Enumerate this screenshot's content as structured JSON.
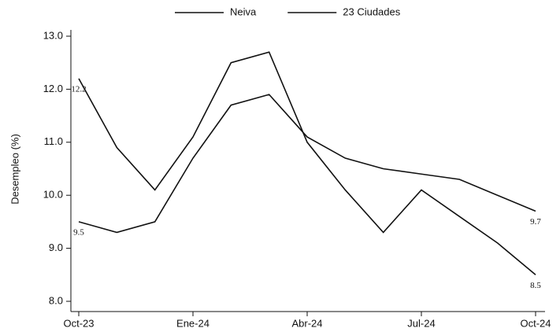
{
  "chart_data": {
    "type": "line",
    "y_label": "Desempleo (%)",
    "categories": [
      "Oct-23",
      null,
      null,
      "Ene-24",
      null,
      null,
      "Abr-24",
      null,
      null,
      "Jul-24",
      null,
      null,
      "Oct-24"
    ],
    "series": [
      {
        "name": "Neiva",
        "color": "#111111",
        "values": [
          12.2,
          10.9,
          10.1,
          11.1,
          12.5,
          12.7,
          11.0,
          10.1,
          9.3,
          10.1,
          9.6,
          9.1,
          8.5
        ]
      },
      {
        "name": "23 Ciudades",
        "color": "#111111",
        "values": [
          9.5,
          9.3,
          9.5,
          10.7,
          11.7,
          11.9,
          11.1,
          10.7,
          10.5,
          10.4,
          10.3,
          10.0,
          9.7
        ]
      }
    ],
    "data_labels": "ends",
    "ylim": [
      7.9,
      13.1
    ],
    "yticks": [
      {
        "value": 8,
        "label": "8.0"
      },
      {
        "value": 9,
        "label": "9.0"
      },
      {
        "value": 10,
        "label": "10.0"
      },
      {
        "value": 11,
        "label": "11.0"
      },
      {
        "value": 12,
        "label": "12.0"
      },
      {
        "value": 13,
        "label": "13.0"
      }
    ],
    "grid": false,
    "legend": "top"
  }
}
